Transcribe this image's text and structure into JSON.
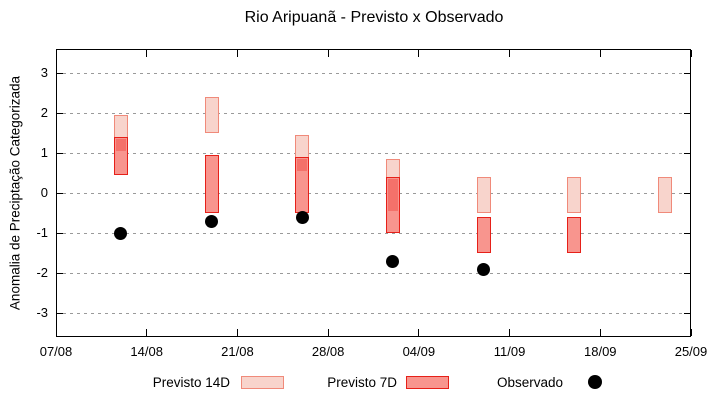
{
  "title": "Rio Aripuanã - Previsto x Observado",
  "axes": {
    "y_label": "Anomalia de Preciptação Categorizada",
    "y_ticks": [
      "3",
      "2",
      "1",
      "0",
      "-1",
      "-2",
      "-3"
    ],
    "y_tick_values": [
      3,
      2,
      1,
      0,
      -1,
      -2,
      -3
    ],
    "y_range": [
      -3.6,
      3.6
    ],
    "x_ticks": [
      "07/08",
      "14/08",
      "21/08",
      "28/08",
      "04/09",
      "11/09",
      "18/09",
      "25/09"
    ],
    "x_tick_days": [
      0,
      7,
      14,
      21,
      28,
      35,
      42,
      49
    ],
    "x_range_days": 49
  },
  "legend": {
    "position": "bottom",
    "items": [
      {
        "label": "Previsto 14D",
        "swatch": "previsto14-swatch"
      },
      {
        "label": "Previsto 7D",
        "swatch": "previsto7-swatch"
      },
      {
        "label": "Observado",
        "swatch": "observado-dot"
      }
    ]
  },
  "colors": {
    "previsto14_fill": "#f8d4cc",
    "previsto14_border": "#f08a7a",
    "previsto7_fill": "#f8958e",
    "previsto7_border": "#e62019",
    "overlap_fill": "#f4716a",
    "observado": "#000000",
    "grid": "#9a9a9a",
    "axis": "#000000"
  },
  "chart_data": {
    "type": "custom-forecast-range-boxes",
    "title": "Rio Aripuanã - Previsto x Observado",
    "xlabel": "",
    "ylabel": "Anomalia de Preciptação Categorizada",
    "grid": true,
    "legend_position": "bottom",
    "ylim": [
      -3.6,
      3.6
    ],
    "x_axis_dates": [
      "07/08",
      "25/09"
    ],
    "points": [
      {
        "date": "12/08",
        "day": 5,
        "previsto14": [
          1.0,
          1.95
        ],
        "previsto7": [
          0.45,
          1.4
        ],
        "observado": -1.0
      },
      {
        "date": "19/08",
        "day": 12,
        "previsto14": [
          1.5,
          2.4
        ],
        "previsto7": [
          -0.5,
          0.95
        ],
        "observado": -0.7
      },
      {
        "date": "26/08",
        "day": 19,
        "previsto14": [
          0.5,
          1.45
        ],
        "previsto7": [
          -0.5,
          0.9
        ],
        "observado": -0.6
      },
      {
        "date": "02/09",
        "day": 26,
        "previsto14": [
          -0.5,
          0.85
        ],
        "previsto7": [
          -1.0,
          0.4
        ],
        "observado": -1.7
      },
      {
        "date": "09/09",
        "day": 33,
        "previsto14": [
          -0.5,
          0.4
        ],
        "previsto7": [
          -1.5,
          -0.6
        ],
        "observado": -1.9
      },
      {
        "date": "16/09",
        "day": 40,
        "previsto14": [
          -0.5,
          0.4
        ],
        "previsto7": [
          -1.5,
          -0.6
        ],
        "observado": null
      },
      {
        "date": "23/09",
        "day": 47,
        "previsto14": [
          -0.5,
          0.4
        ],
        "previsto7": null,
        "observado": null
      }
    ]
  }
}
